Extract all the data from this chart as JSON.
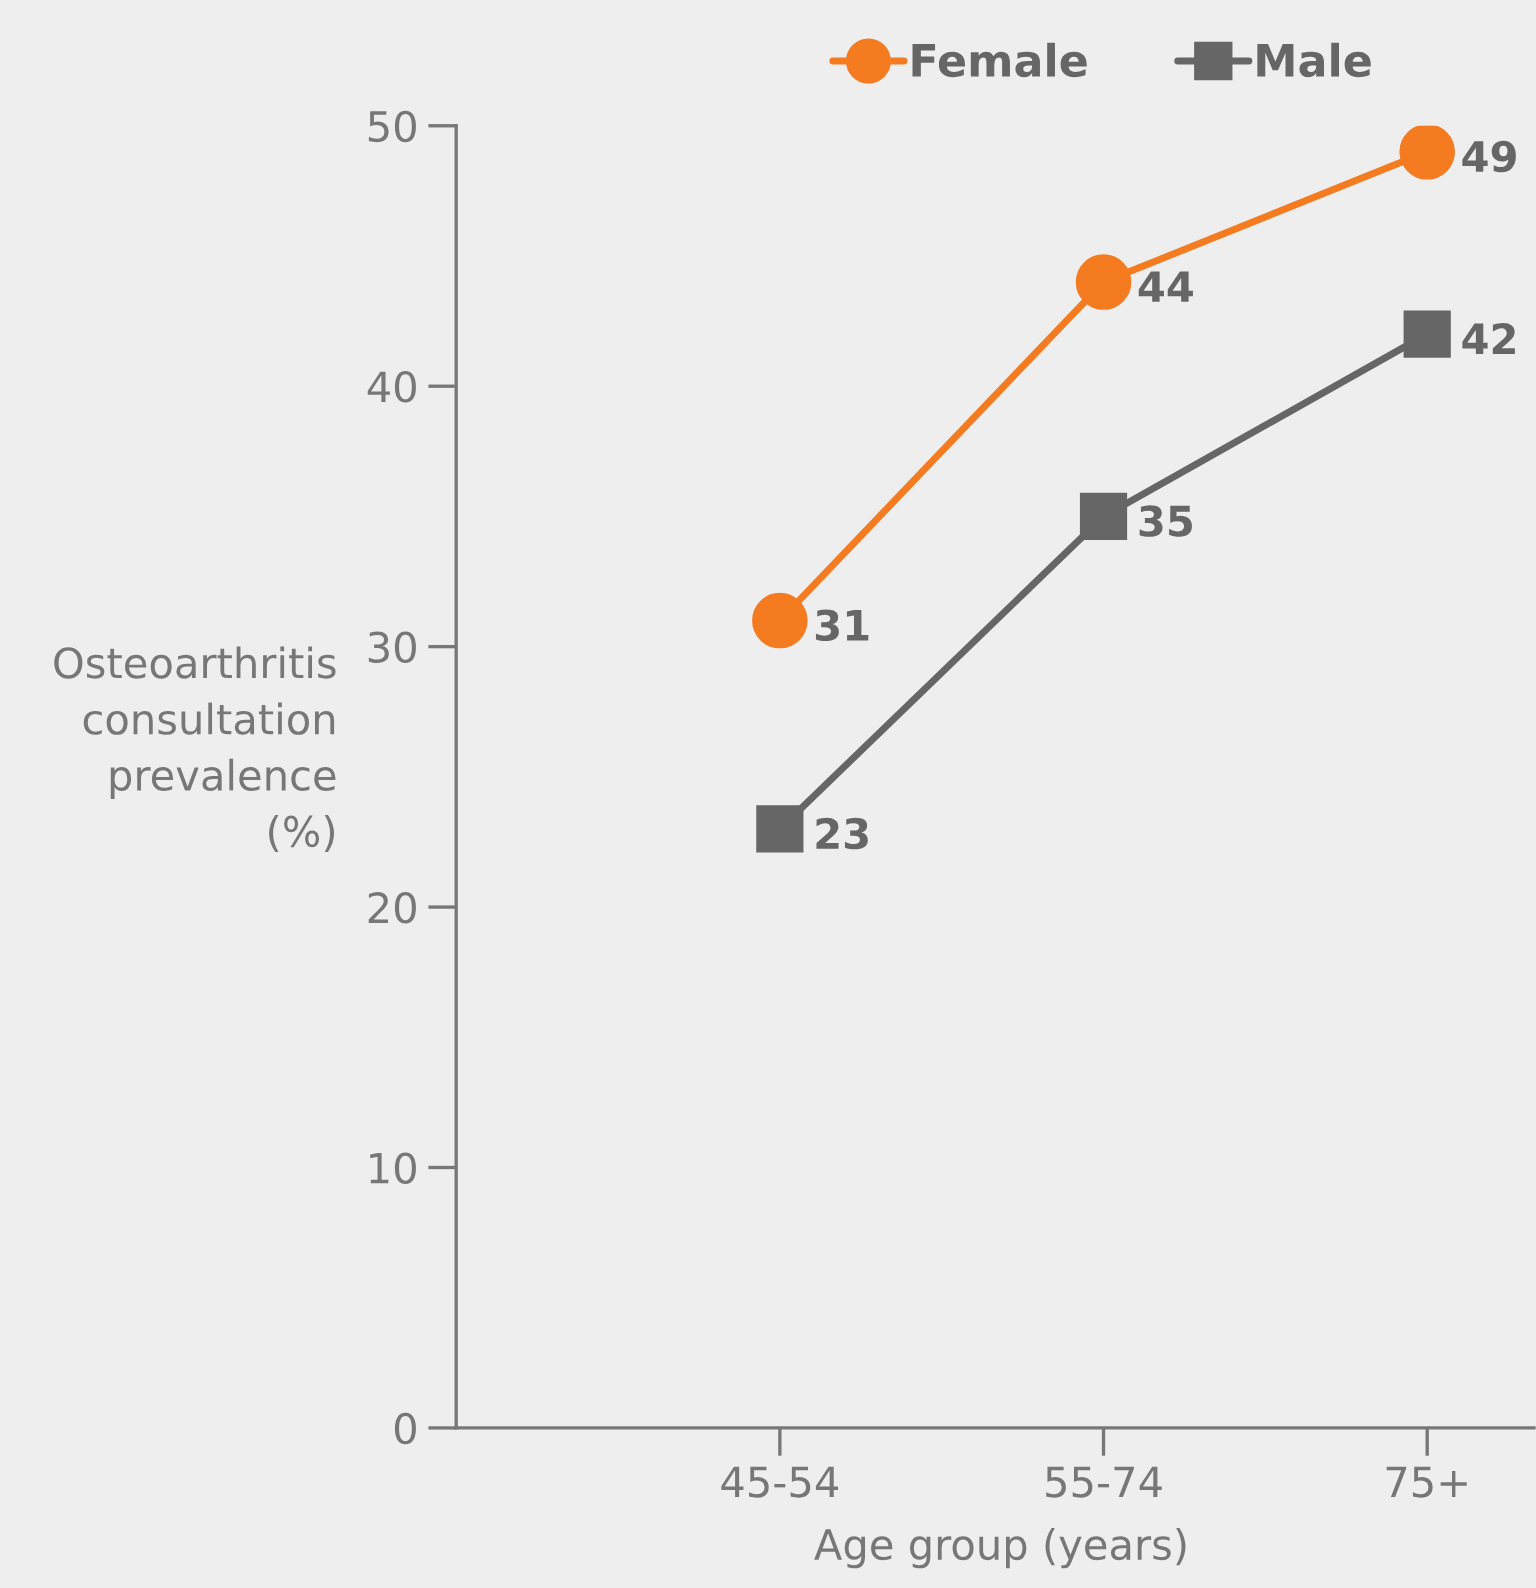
{
  "chart_data": {
    "type": "line",
    "xlabel": "Age group (years)",
    "ylabel": "Osteoarthritis\nconsultation\nprevalence\n(%)",
    "categories": [
      "45-54",
      "55-74",
      "75+"
    ],
    "series": [
      {
        "name": "Female",
        "color": "#f47b20",
        "values": [
          31,
          44,
          49
        ],
        "marker": "circle"
      },
      {
        "name": "Male",
        "color": "#666666",
        "values": [
          23,
          35,
          42
        ],
        "marker": "square"
      }
    ],
    "ylim": [
      0,
      50
    ],
    "yticks": [
      0,
      10,
      20,
      30,
      40,
      50
    ],
    "grid": false,
    "legend": "top",
    "data_labels": true,
    "line_style": "solid"
  }
}
